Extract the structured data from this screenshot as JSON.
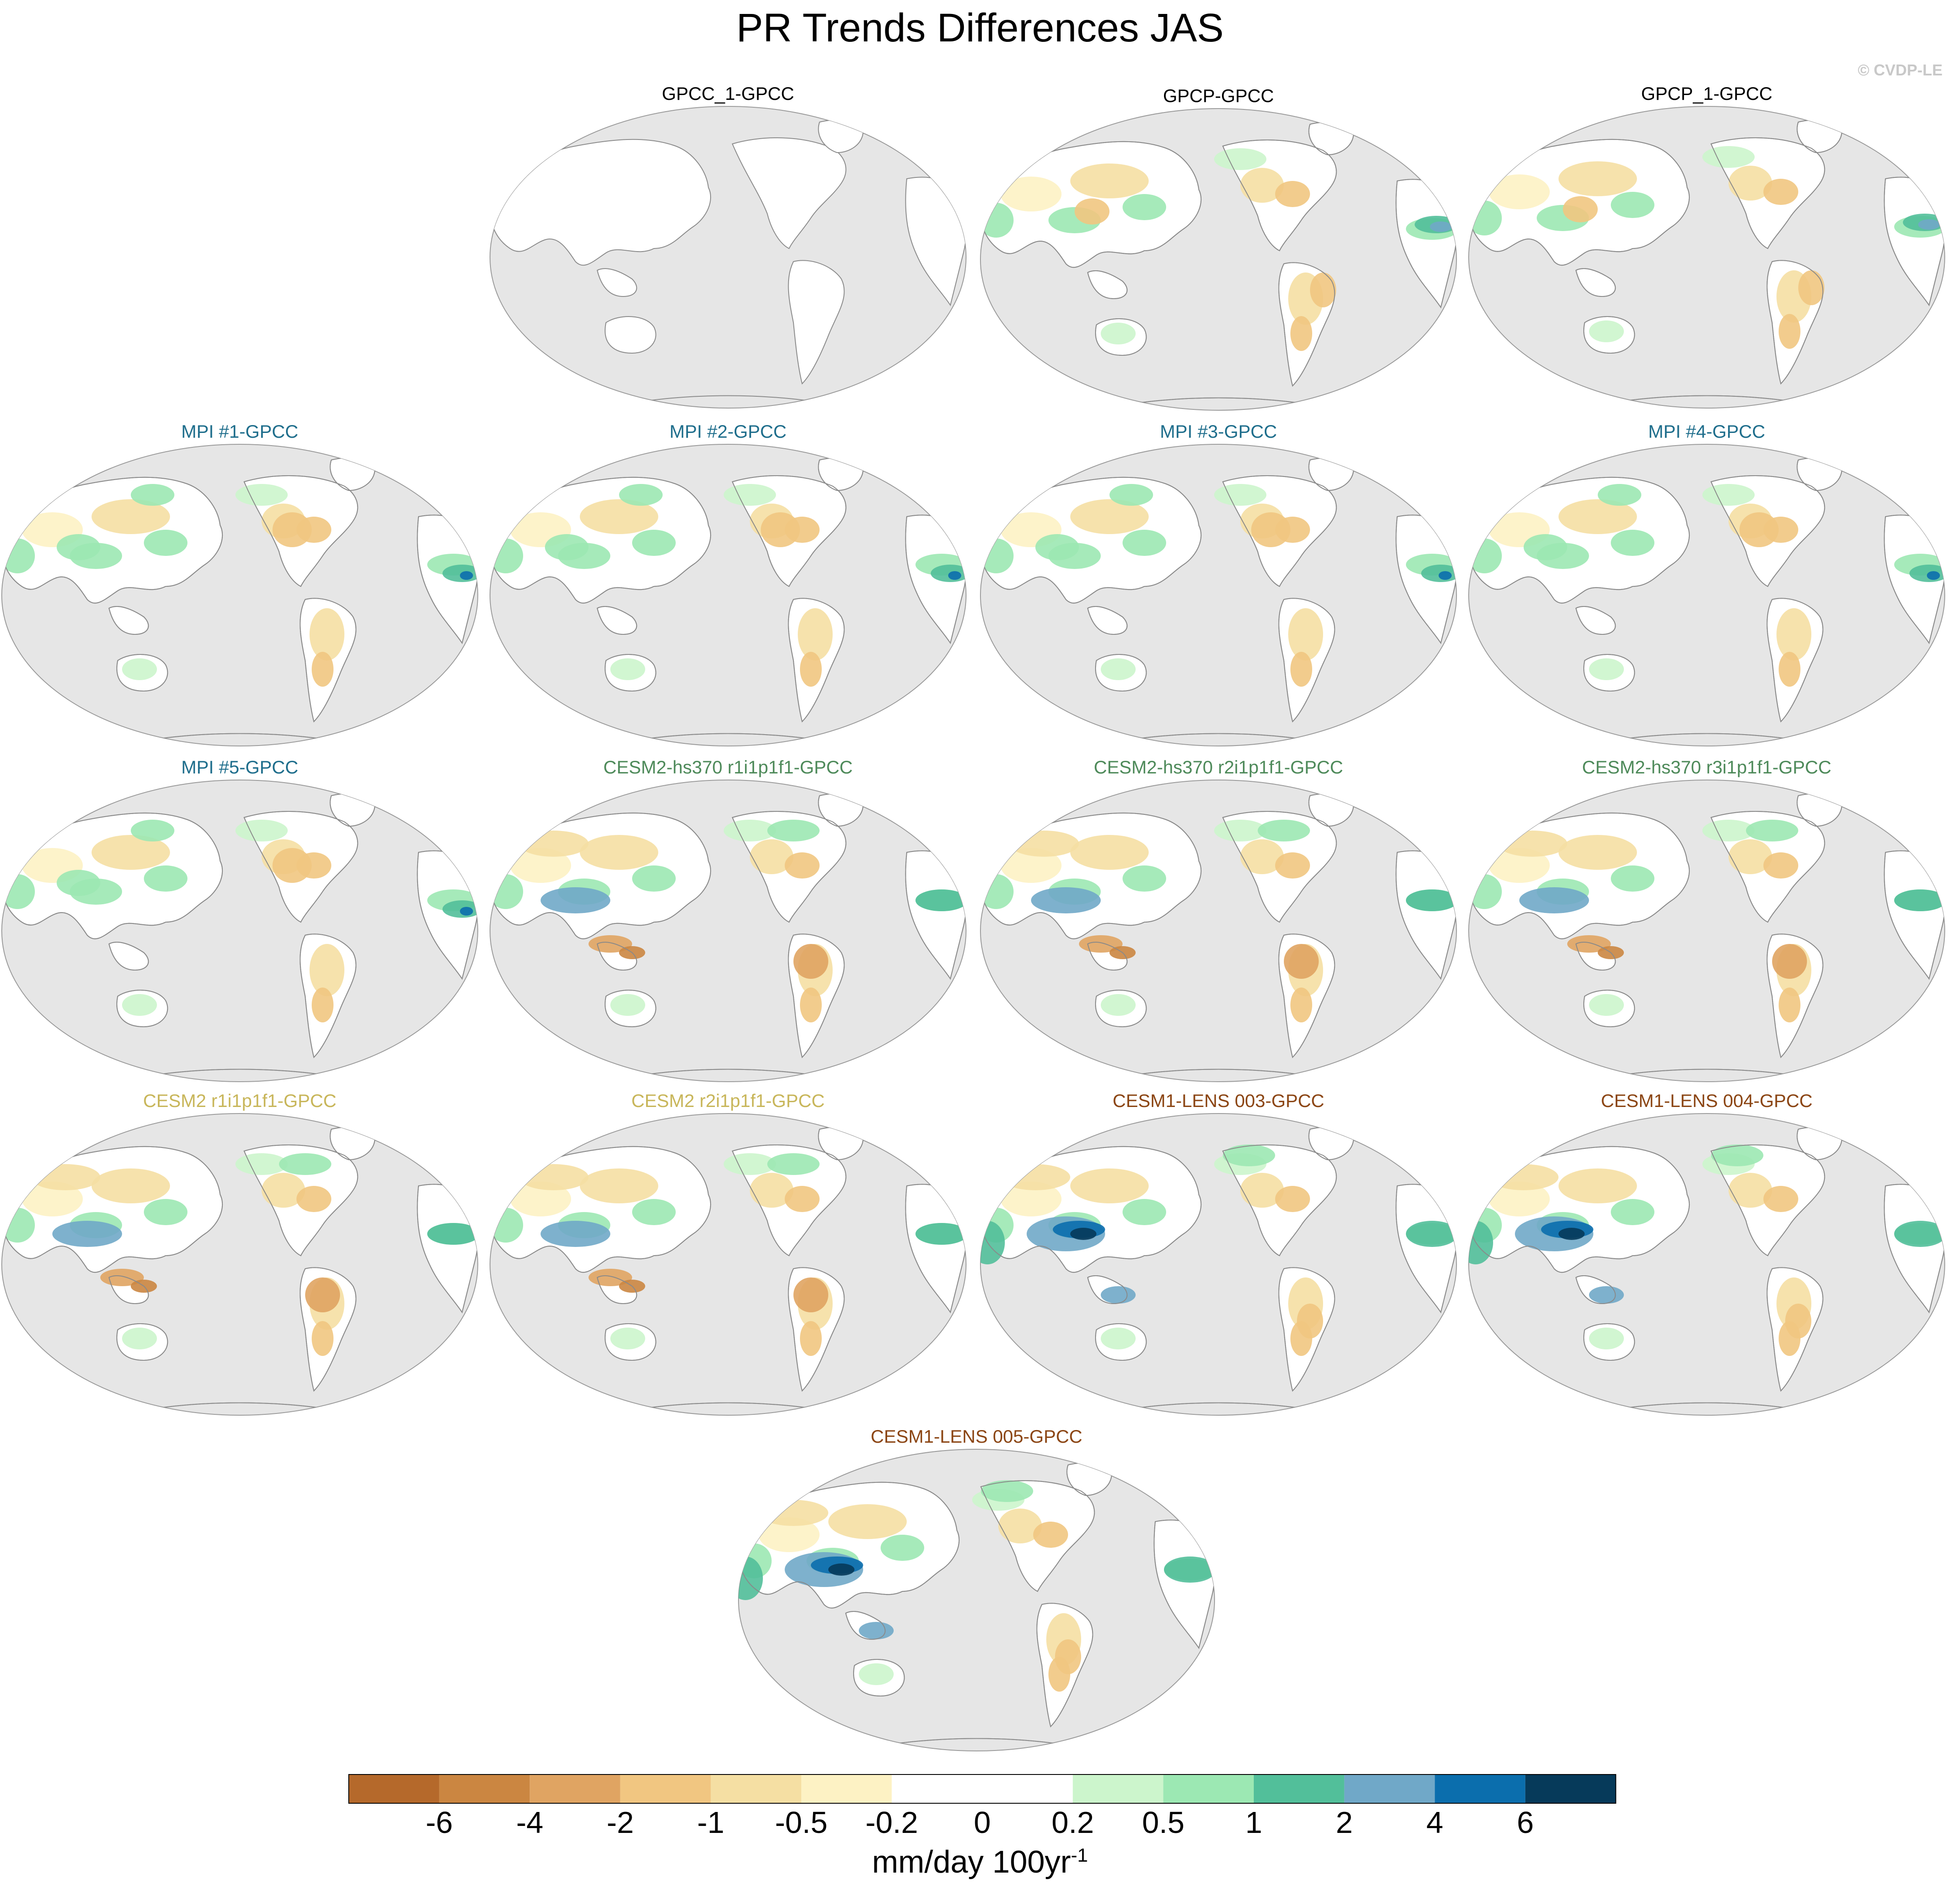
{
  "title": "PR Trends Differences JAS",
  "credit": "© CVDP-LE",
  "panels": [
    {
      "label": "GPCC_1-GPCC",
      "color": "#000000",
      "pattern": 0
    },
    {
      "label": "GPCP-GPCC",
      "color": "#000000",
      "pattern": 1
    },
    {
      "label": "GPCP_1-GPCC",
      "color": "#000000",
      "pattern": 1
    },
    {
      "label": "MPI #1-GPCC",
      "color": "#1f6e8c",
      "pattern": 2
    },
    {
      "label": "MPI #2-GPCC",
      "color": "#1f6e8c",
      "pattern": 2
    },
    {
      "label": "MPI #3-GPCC",
      "color": "#1f6e8c",
      "pattern": 2
    },
    {
      "label": "MPI #4-GPCC",
      "color": "#1f6e8c",
      "pattern": 2
    },
    {
      "label": "MPI #5-GPCC",
      "color": "#1f6e8c",
      "pattern": 2
    },
    {
      "label": "CESM2-hs370 r1i1p1f1-GPCC",
      "color": "#4e8a5a",
      "pattern": 3
    },
    {
      "label": "CESM2-hs370 r2i1p1f1-GPCC",
      "color": "#4e8a5a",
      "pattern": 3
    },
    {
      "label": "CESM2-hs370 r3i1p1f1-GPCC",
      "color": "#4e8a5a",
      "pattern": 3
    },
    {
      "label": "CESM2 r1i1p1f1-GPCC",
      "color": "#c8b65a",
      "pattern": 3
    },
    {
      "label": "CESM2 r2i1p1f1-GPCC",
      "color": "#c8b65a",
      "pattern": 3
    },
    {
      "label": "CESM1-LENS 003-GPCC",
      "color": "#8b4513",
      "pattern": 4
    },
    {
      "label": "CESM1-LENS 004-GPCC",
      "color": "#8b4513",
      "pattern": 4
    },
    {
      "label": "CESM1-LENS 005-GPCC",
      "color": "#8b4513",
      "pattern": 4
    }
  ],
  "colorbar": {
    "colors": [
      "#b5692b",
      "#cb8641",
      "#e0a462",
      "#f1c681",
      "#f5dfa3",
      "#fdf2c4",
      "#ffffff",
      "#ffffff",
      "#ccf5cc",
      "#9ce8b3",
      "#52bf9a",
      "#70a8c8",
      "#0b6ead",
      "#063a5a"
    ],
    "labels": [
      "-6",
      "-4",
      "-2",
      "-1",
      "-0.5",
      "-0.2",
      "0",
      "0.2",
      "0.5",
      "1",
      "2",
      "4",
      "6"
    ],
    "units_main": "mm/day 100yr",
    "units_sup": "-1"
  }
}
